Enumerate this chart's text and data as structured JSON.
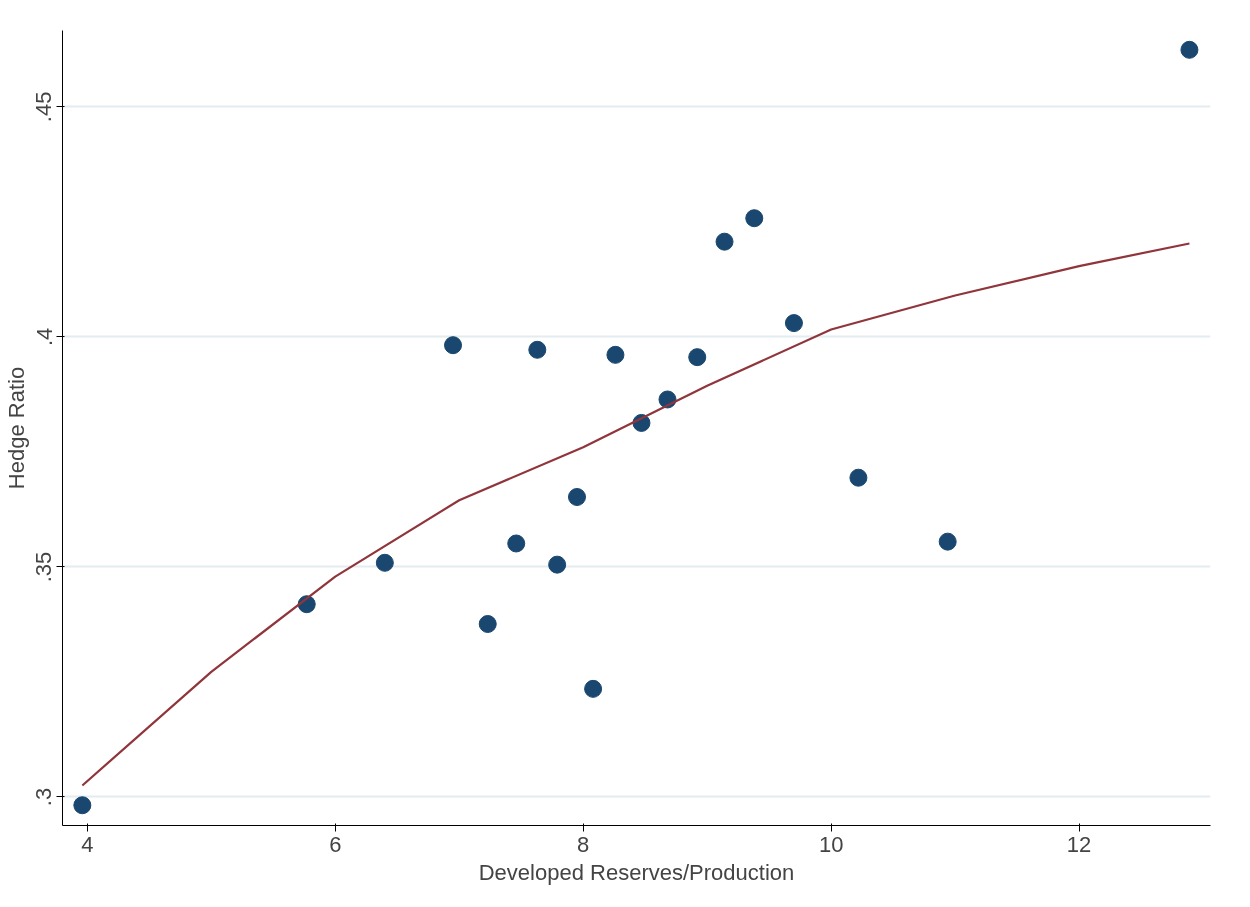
{
  "chart_data": {
    "type": "scatter",
    "xlabel": "Developed Reserves/Production",
    "ylabel": "Hedge Ratio",
    "xlim": [
      3.8,
      13.06
    ],
    "ylim": [
      0.2938,
      0.4666
    ],
    "xticks": [
      4,
      6,
      8,
      10,
      12
    ],
    "yticks": [
      {
        "value": 0.3,
        "label": ".3"
      },
      {
        "value": 0.35,
        "label": ".35"
      },
      {
        "value": 0.4,
        "label": ".4"
      },
      {
        "value": 0.45,
        "label": ".45"
      }
    ],
    "grid": "y",
    "marker": "circle",
    "series": [
      {
        "color": "#1a476f",
        "x": [
          3.96,
          5.77,
          6.4,
          6.95,
          7.23,
          7.46,
          7.63,
          7.79,
          7.95,
          8.08,
          8.26,
          8.47,
          8.68,
          8.92,
          9.14,
          9.38,
          9.7,
          10.22,
          10.94,
          12.89
        ],
        "values": [
          0.2982,
          0.3419,
          0.3509,
          0.3982,
          0.3376,
          0.3551,
          0.3972,
          0.3505,
          0.3652,
          0.3235,
          0.3961,
          0.3813,
          0.3864,
          0.3956,
          0.4207,
          0.4258,
          0.403,
          0.3694,
          0.3555,
          0.4624
        ]
      },
      {
        "type": "line",
        "color": "#90353b",
        "marker": "none",
        "x": [
          3.96,
          5,
          6,
          7,
          8,
          9,
          10,
          11,
          12,
          12.89
        ],
        "values": [
          0.3025,
          0.3272,
          0.3479,
          0.3645,
          0.376,
          0.3894,
          0.4016,
          0.409,
          0.4154,
          0.4203
        ]
      }
    ]
  }
}
